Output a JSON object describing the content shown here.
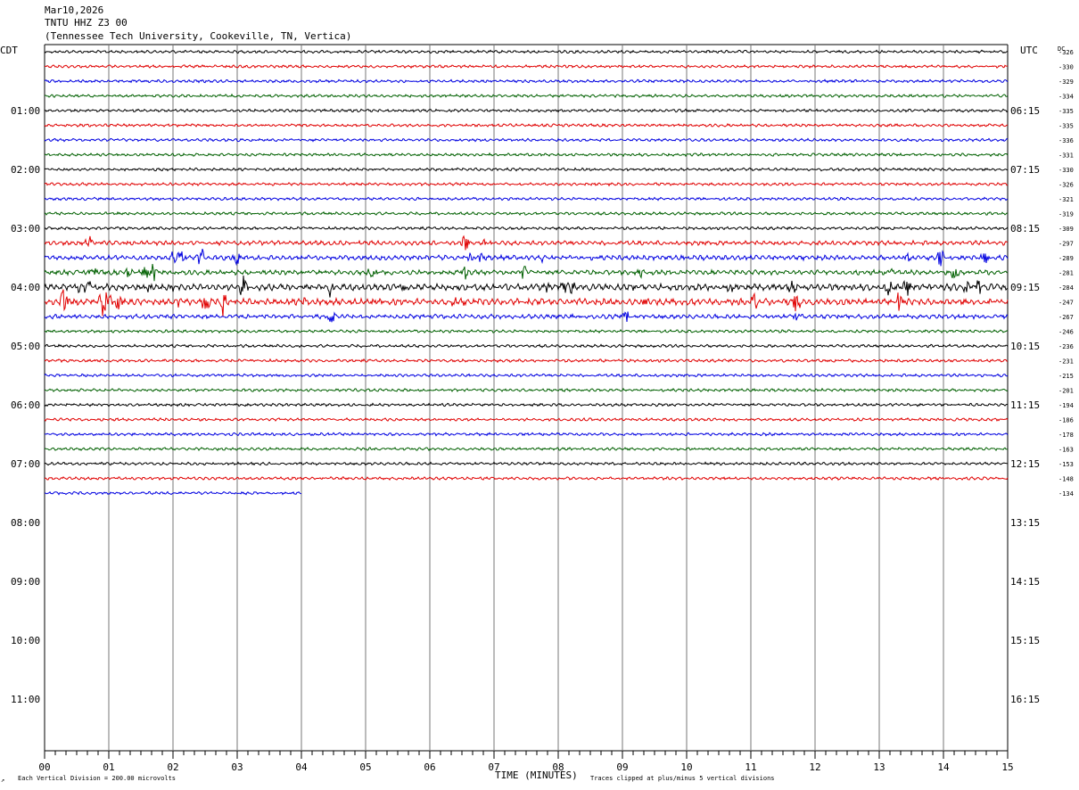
{
  "header": {
    "date": "Mar10,2026",
    "station": "TNTU HHZ Z3 00",
    "location": "(Tennessee Tech University, Cookeville, TN, Vertica)"
  },
  "footer": {
    "scale_note": "Each Vertical Division =  200.00 microvolts",
    "clip_note": "Traces clipped at plus/minus 5 vertical divisions",
    "corner_mark": "↗"
  },
  "chart_data": {
    "type": "line",
    "left_timezone": "CDT",
    "right_timezone": "UTC",
    "dc_header": "DC",
    "xlabel": "TIME (MINUTES)",
    "x_ticks": [
      "00",
      "01",
      "02",
      "03",
      "04",
      "05",
      "06",
      "07",
      "08",
      "09",
      "10",
      "11",
      "12",
      "13",
      "14",
      "15"
    ],
    "xlim": [
      0,
      15
    ],
    "left_hour_labels": [
      "01:00",
      "02:00",
      "03:00",
      "04:00",
      "05:00",
      "06:00",
      "07:00",
      "08:00",
      "09:00",
      "10:00",
      "11:00"
    ],
    "right_hour_labels": [
      "06:15",
      "07:15",
      "08:15",
      "09:15",
      "10:15",
      "11:15",
      "12:15",
      "13:15",
      "14:15",
      "15:15",
      "16:15"
    ],
    "trace_colors": [
      "#000000",
      "#e00000",
      "#0000e0",
      "#006000"
    ],
    "traces": [
      {
        "dc": "-326",
        "end_minute": 15,
        "activity": "quiet"
      },
      {
        "dc": "-330",
        "end_minute": 15,
        "activity": "quiet"
      },
      {
        "dc": "-329",
        "end_minute": 15,
        "activity": "quiet"
      },
      {
        "dc": "-334",
        "end_minute": 15,
        "activity": "quiet"
      },
      {
        "dc": "-335",
        "end_minute": 15,
        "activity": "quiet"
      },
      {
        "dc": "-335",
        "end_minute": 15,
        "activity": "quiet"
      },
      {
        "dc": "-336",
        "end_minute": 15,
        "activity": "quiet"
      },
      {
        "dc": "-331",
        "end_minute": 15,
        "activity": "quiet"
      },
      {
        "dc": "-330",
        "end_minute": 15,
        "activity": "quiet"
      },
      {
        "dc": "-326",
        "end_minute": 15,
        "activity": "quiet"
      },
      {
        "dc": "-321",
        "end_minute": 15,
        "activity": "quiet"
      },
      {
        "dc": "-319",
        "end_minute": 15,
        "activity": "quiet"
      },
      {
        "dc": "-309",
        "end_minute": 15,
        "activity": "quiet"
      },
      {
        "dc": "-297",
        "end_minute": 15,
        "activity": "low"
      },
      {
        "dc": "-289",
        "end_minute": 15,
        "activity": "events"
      },
      {
        "dc": "-281",
        "end_minute": 15,
        "activity": "events"
      },
      {
        "dc": "-284",
        "end_minute": 15,
        "activity": "high"
      },
      {
        "dc": "-247",
        "end_minute": 15,
        "activity": "high"
      },
      {
        "dc": "-267",
        "end_minute": 15,
        "activity": "low"
      },
      {
        "dc": "-246",
        "end_minute": 15,
        "activity": "quiet"
      },
      {
        "dc": "-236",
        "end_minute": 15,
        "activity": "quiet"
      },
      {
        "dc": "-231",
        "end_minute": 15,
        "activity": "quiet"
      },
      {
        "dc": "-215",
        "end_minute": 15,
        "activity": "quiet"
      },
      {
        "dc": "-201",
        "end_minute": 15,
        "activity": "quiet"
      },
      {
        "dc": "-194",
        "end_minute": 15,
        "activity": "quiet"
      },
      {
        "dc": "-186",
        "end_minute": 15,
        "activity": "quiet"
      },
      {
        "dc": "-178",
        "end_minute": 15,
        "activity": "quiet"
      },
      {
        "dc": "-163",
        "end_minute": 15,
        "activity": "quiet"
      },
      {
        "dc": "-153",
        "end_minute": 15,
        "activity": "quiet"
      },
      {
        "dc": "-148",
        "end_minute": 15,
        "activity": "quiet"
      },
      {
        "dc": "-134",
        "end_minute": 4,
        "activity": "quiet"
      }
    ]
  }
}
